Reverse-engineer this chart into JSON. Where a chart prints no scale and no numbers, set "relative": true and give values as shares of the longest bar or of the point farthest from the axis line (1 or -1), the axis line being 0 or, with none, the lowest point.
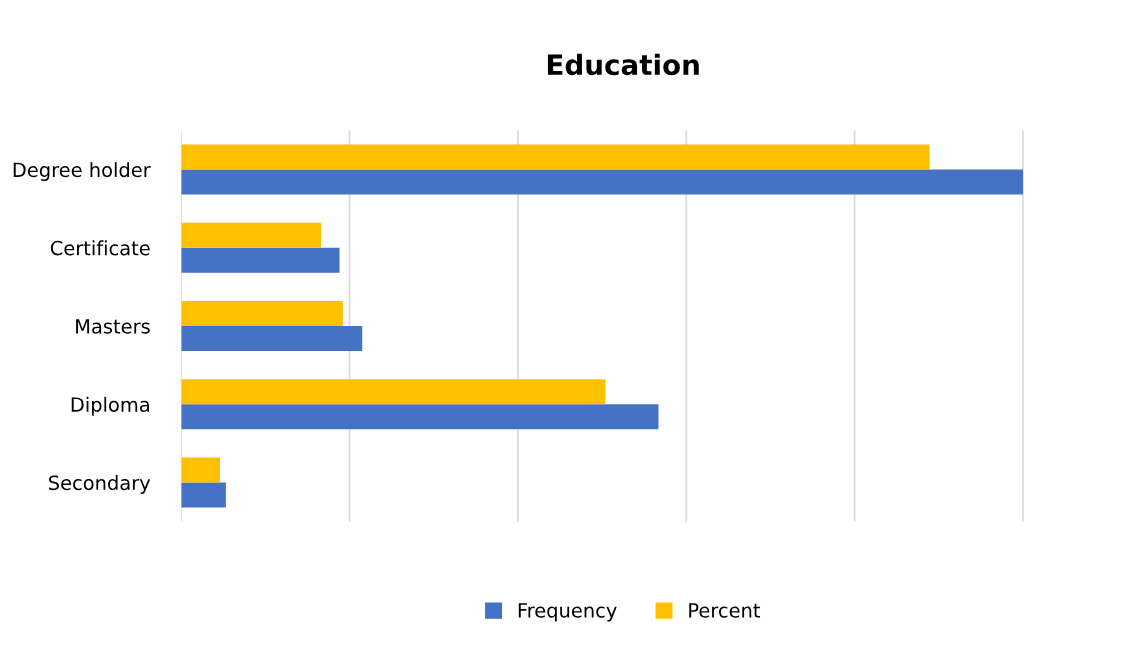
{
  "chart_data": {
    "type": "bar",
    "title": "Education",
    "orientation": "horizontal",
    "relative": true,
    "categories": [
      "Degree holder",
      "Certificate",
      "Masters",
      "Diploma",
      "Secondary"
    ],
    "series": [
      {
        "name": "Frequency",
        "color": "#4472c4",
        "values": [
          1,
          0.188,
          0.215,
          0.567,
          0.053
        ]
      },
      {
        "name": "Percent",
        "color": "#ffc000",
        "values": [
          0.889,
          0.166,
          0.192,
          0.504,
          0.046
        ]
      }
    ],
    "grid": "x",
    "legend": "bottom"
  }
}
